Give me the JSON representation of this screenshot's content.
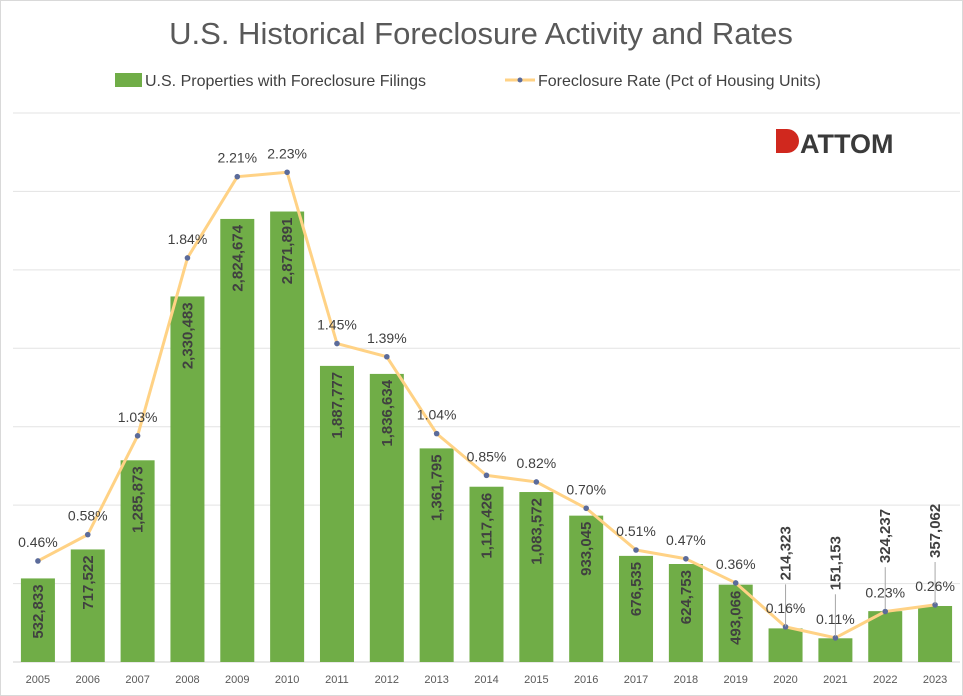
{
  "chart_data": {
    "type": "bar+line",
    "title": "U.S. Historical Foreclosure Activity and Rates",
    "categories": [
      "2005",
      "2006",
      "2007",
      "2008",
      "2009",
      "2010",
      "2011",
      "2012",
      "2013",
      "2014",
      "2015",
      "2016",
      "2017",
      "2018",
      "2019",
      "2020",
      "2021",
      "2022",
      "2023"
    ],
    "series": [
      {
        "name": "U.S. Properties with Foreclosure Filings",
        "type": "bar",
        "color": "#70AD47",
        "values": [
          532833,
          717522,
          1285873,
          2330483,
          2824674,
          2871891,
          1887777,
          1836634,
          1361795,
          1117426,
          1083572,
          933045,
          676535,
          624753,
          493066,
          214323,
          151153,
          324237,
          357062
        ],
        "labels": [
          "532,833",
          "717,522",
          "1,285,873",
          "2,330,483",
          "2,824,674",
          "2,871,891",
          "1,887,777",
          "1,836,634",
          "1,361,795",
          "1,117,426",
          "1,083,572",
          "933,045",
          "676,535",
          "624,753",
          "493,066",
          "214,323",
          "151,153",
          "324,237",
          "357,062"
        ]
      },
      {
        "name": "Foreclosure Rate (Pct of Housing Units)",
        "type": "line",
        "color": "#FFD285",
        "marker_color": "#5B6B9A",
        "values": [
          0.46,
          0.58,
          1.03,
          1.84,
          2.21,
          2.23,
          1.45,
          1.39,
          1.04,
          0.85,
          0.82,
          0.7,
          0.51,
          0.47,
          0.36,
          0.16,
          0.11,
          0.23,
          0.26
        ],
        "labels": [
          "0.46%",
          "0.58%",
          "1.03%",
          "1.84%",
          "2.21%",
          "2.23%",
          "1.45%",
          "1.39%",
          "1.04%",
          "0.85%",
          "0.82%",
          "0.70%",
          "0.51%",
          "0.47%",
          "0.36%",
          "0.16%",
          "0.11%",
          "0.23%",
          "0.26%"
        ]
      }
    ],
    "ylim": [
      0,
      3500000
    ],
    "y2lim": [
      0,
      2.5
    ],
    "grid": true,
    "y_axis_labels_shown": false,
    "legend_placement": "top"
  },
  "logo": {
    "text": "ATTOM",
    "color": "#D0281E"
  }
}
